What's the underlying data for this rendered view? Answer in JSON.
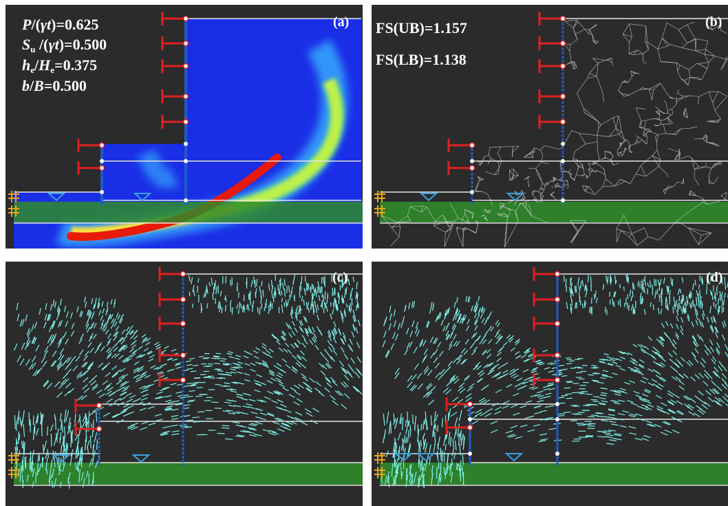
{
  "panels": {
    "a": {
      "label": "(a)",
      "params": {
        "load_ratio": "P/(γt)=0.625",
        "strength_ratio": "Su/(γt)=0.500",
        "embed_ratio": "he/He=0.375",
        "width_ratio": "b/B=0.500"
      }
    },
    "b": {
      "label": "(b)",
      "fs_upper": "FS(UB)=1.157",
      "fs_lower": "FS(LB)=1.138"
    },
    "c": {
      "label": "(c)"
    },
    "d": {
      "label": "(d)"
    }
  },
  "colors": {
    "background": "#2b2b2b",
    "soil_blue": "#1a2ee6",
    "shear_red": "#e81a0a",
    "mesh": "#d9d9d9",
    "stratum_green": "#2f8a2a",
    "wall_blue": "#1f5cc9",
    "strut_red": "#e02020",
    "velocity_cyan": "#7ff0ea",
    "water_table": "#3aa0e0",
    "boundary_orange": "#e8a51a"
  }
}
